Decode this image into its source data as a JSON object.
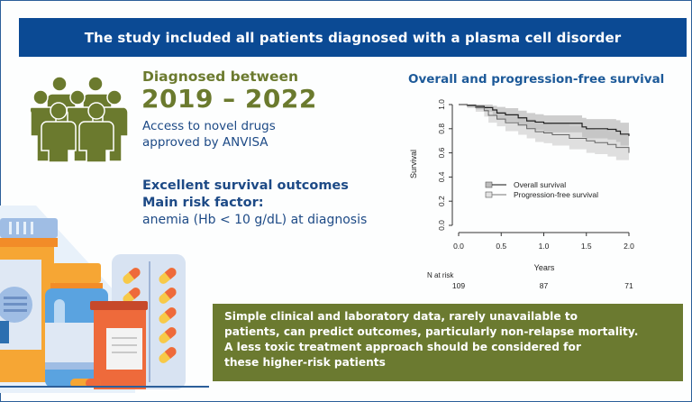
{
  "banner": {
    "text": "The study included all patients diagnosed with a plasma cell disorder"
  },
  "left": {
    "people_icon": "group-of-people-icon",
    "diagnosed_label": "Diagnosed between",
    "years": "2019 – 2022",
    "access_line1": "Access to novel drugs",
    "access_line2": "approved by ANVISA",
    "excellent": "Excellent survival outcomes",
    "risk_label": "Main risk factor:",
    "risk_value": "anemia (Hb < 10 g/dL) at diagnosis",
    "illustration": "medicine-bottles-and-pills-icon"
  },
  "conclusion": {
    "lines": [
      "Simple clinical and laboratory data, rarely unavailable to",
      "patients, can predict outcomes, particularly non-relapse mortality.",
      "A less toxic treatment approach should be considered for",
      "these higher-risk patients"
    ]
  },
  "colors": {
    "banner": "#0b4a94",
    "olive": "#6b7a30",
    "navy_text": "#1d4a86",
    "os_line": "#222222",
    "pfs_line": "#666666",
    "os_band": "#bdbdbd",
    "pfs_band": "#dcdcdc"
  },
  "chart_data": {
    "type": "line",
    "title": "Overall and progression-free survival",
    "xlabel": "Years",
    "ylabel": "Survival",
    "xlim": [
      0,
      2.0
    ],
    "ylim": [
      0,
      1.0
    ],
    "xticks": [
      "0.0",
      "0.5",
      "1.0",
      "1.5",
      "2.0"
    ],
    "yticks": [
      "0.0",
      "0.2",
      "0.4",
      "0.6",
      "0.8",
      "1.0"
    ],
    "legend": {
      "placement": "center-left",
      "entries": [
        "Overall survival",
        "Progression-free survival"
      ]
    },
    "series": [
      {
        "name": "Overall survival",
        "x": [
          0,
          0.1,
          0.2,
          0.3,
          0.4,
          0.45,
          0.55,
          0.7,
          0.8,
          0.9,
          1.0,
          1.2,
          1.45,
          1.5,
          1.75,
          1.85,
          1.9,
          2.0
        ],
        "y": [
          1.0,
          0.995,
          0.985,
          0.975,
          0.955,
          0.93,
          0.915,
          0.89,
          0.865,
          0.855,
          0.845,
          0.845,
          0.815,
          0.8,
          0.795,
          0.78,
          0.755,
          0.74
        ],
        "ci_lower": [
          1.0,
          0.98,
          0.96,
          0.94,
          0.91,
          0.88,
          0.86,
          0.83,
          0.8,
          0.79,
          0.77,
          0.77,
          0.73,
          0.72,
          0.71,
          0.69,
          0.66,
          0.64
        ],
        "ci_upper": [
          1.0,
          1.0,
          1.0,
          1.0,
          0.99,
          0.98,
          0.97,
          0.95,
          0.93,
          0.92,
          0.91,
          0.91,
          0.89,
          0.88,
          0.88,
          0.87,
          0.85,
          0.84
        ]
      },
      {
        "name": "Progression-free survival",
        "x": [
          0,
          0.1,
          0.2,
          0.3,
          0.35,
          0.45,
          0.55,
          0.7,
          0.8,
          0.9,
          1.0,
          1.1,
          1.3,
          1.5,
          1.6,
          1.75,
          1.85,
          2.0
        ],
        "y": [
          1.0,
          0.99,
          0.975,
          0.95,
          0.91,
          0.88,
          0.85,
          0.83,
          0.8,
          0.775,
          0.765,
          0.75,
          0.72,
          0.7,
          0.685,
          0.67,
          0.645,
          0.6
        ],
        "ci_lower": [
          1.0,
          0.97,
          0.94,
          0.9,
          0.85,
          0.82,
          0.78,
          0.75,
          0.72,
          0.69,
          0.68,
          0.66,
          0.63,
          0.6,
          0.59,
          0.57,
          0.54,
          0.5
        ],
        "ci_upper": [
          1.0,
          1.0,
          1.0,
          0.99,
          0.96,
          0.94,
          0.92,
          0.9,
          0.88,
          0.86,
          0.85,
          0.84,
          0.82,
          0.8,
          0.79,
          0.78,
          0.76,
          0.72
        ]
      }
    ],
    "risk_table": {
      "label": "N at risk",
      "x": [
        0,
        1.0,
        2.0
      ],
      "values": [
        "109",
        "87",
        "71"
      ]
    }
  }
}
